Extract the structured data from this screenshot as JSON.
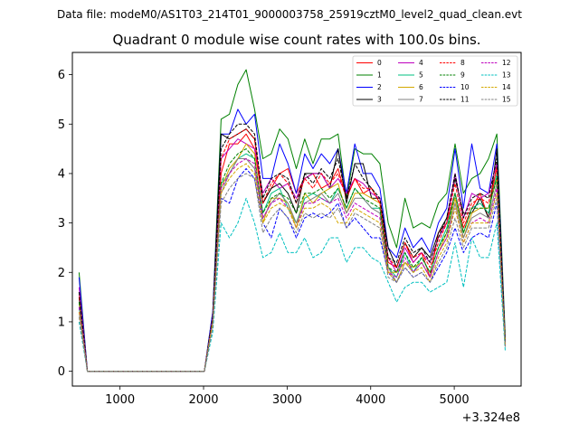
{
  "chart_data": {
    "type": "line",
    "suptitle": "Data file: modeM0/AS1T03_214T01_9000003758_25919cztM0_level2_quad_clean.evt",
    "title": "Quadrant 0 module wise count rates with 100.0s bins.",
    "xlabel": "",
    "ylabel": "",
    "x_offset_label": "+3.324e8",
    "xlim": [
      430,
      5800
    ],
    "ylim": [
      -0.3,
      6.45
    ],
    "xticks": [
      1000,
      2000,
      3000,
      4000,
      5000
    ],
    "yticks": [
      0,
      1,
      2,
      3,
      4,
      5,
      6
    ],
    "grid": false,
    "legend": {
      "placement": "top-right",
      "ncol": 4
    },
    "x": [
      510,
      610,
      710,
      810,
      910,
      1010,
      1110,
      1210,
      1310,
      1410,
      1510,
      1610,
      1710,
      1810,
      1910,
      2010,
      2110,
      2210,
      2310,
      2410,
      2510,
      2610,
      2710,
      2810,
      2910,
      3010,
      3110,
      3210,
      3310,
      3410,
      3510,
      3610,
      3710,
      3810,
      3910,
      4010,
      4110,
      4210,
      4310,
      4410,
      4510,
      4610,
      4710,
      4810,
      4910,
      5010,
      5110,
      5210,
      5310,
      5410,
      5510,
      5610
    ],
    "series": [
      {
        "name": "0",
        "color": "#ff0000",
        "style": "solid",
        "values": [
          1.6,
          0.0,
          0.0,
          0.0,
          0.0,
          0.0,
          0.0,
          0.0,
          0.0,
          0.0,
          0.0,
          0.0,
          0.0,
          0.0,
          0.0,
          0.0,
          1.1,
          4.0,
          4.6,
          4.6,
          4.8,
          4.5,
          3.4,
          3.7,
          4.0,
          4.1,
          3.6,
          3.9,
          4.0,
          3.7,
          3.8,
          4.1,
          3.5,
          3.9,
          3.6,
          3.7,
          3.4,
          2.2,
          2.1,
          2.6,
          2.2,
          2.4,
          1.9,
          2.8,
          3.0,
          3.6,
          2.9,
          3.3,
          3.6,
          3.1,
          4.2,
          0.6
        ]
      },
      {
        "name": "1",
        "color": "#008000",
        "style": "solid",
        "values": [
          2.0,
          0.0,
          0.0,
          0.0,
          0.0,
          0.0,
          0.0,
          0.0,
          0.0,
          0.0,
          0.0,
          0.0,
          0.0,
          0.0,
          0.0,
          0.0,
          1.2,
          5.1,
          5.2,
          5.8,
          6.1,
          5.3,
          4.3,
          4.4,
          4.9,
          4.7,
          4.1,
          4.7,
          4.2,
          4.7,
          4.7,
          4.8,
          3.5,
          4.5,
          4.4,
          4.4,
          4.2,
          3.0,
          2.5,
          3.5,
          2.9,
          3.0,
          2.9,
          3.4,
          3.6,
          4.6,
          3.6,
          3.9,
          4.0,
          4.3,
          4.8,
          0.7
        ]
      },
      {
        "name": "2",
        "color": "#0000ff",
        "style": "solid",
        "values": [
          1.9,
          0.0,
          0.0,
          0.0,
          0.0,
          0.0,
          0.0,
          0.0,
          0.0,
          0.0,
          0.0,
          0.0,
          0.0,
          0.0,
          0.0,
          0.0,
          1.2,
          4.8,
          4.8,
          5.3,
          5.0,
          5.2,
          3.9,
          3.9,
          4.6,
          4.2,
          3.6,
          4.4,
          4.1,
          4.4,
          4.2,
          4.5,
          3.6,
          4.6,
          4.0,
          4.0,
          3.7,
          2.5,
          2.3,
          2.9,
          2.5,
          2.7,
          2.4,
          3.0,
          3.3,
          4.5,
          3.3,
          4.6,
          3.7,
          3.6,
          4.6,
          0.6
        ]
      },
      {
        "name": "3",
        "color": "#000000",
        "style": "solid",
        "values": [
          1.5,
          0.0,
          0.0,
          0.0,
          0.0,
          0.0,
          0.0,
          0.0,
          0.0,
          0.0,
          0.0,
          0.0,
          0.0,
          0.0,
          0.0,
          0.0,
          1.1,
          4.8,
          4.7,
          4.8,
          4.9,
          4.7,
          3.4,
          3.7,
          3.8,
          3.6,
          3.2,
          4.0,
          4.0,
          4.0,
          3.7,
          4.5,
          3.4,
          4.2,
          4.2,
          3.5,
          3.5,
          2.5,
          2.1,
          2.6,
          2.3,
          2.5,
          2.3,
          2.8,
          3.1,
          3.9,
          3.2,
          3.2,
          3.5,
          3.1,
          4.5,
          0.5
        ]
      },
      {
        "name": "4",
        "color": "#bf00bf",
        "style": "solid",
        "values": [
          1.7,
          0.0,
          0.0,
          0.0,
          0.0,
          0.0,
          0.0,
          0.0,
          0.0,
          0.0,
          0.0,
          0.0,
          0.0,
          0.0,
          0.0,
          0.0,
          1.1,
          4.3,
          4.5,
          4.7,
          4.6,
          4.5,
          3.6,
          3.9,
          3.7,
          3.8,
          3.5,
          3.9,
          4.0,
          4.0,
          3.7,
          3.9,
          3.6,
          3.9,
          3.8,
          3.6,
          3.5,
          2.3,
          2.0,
          2.5,
          2.2,
          2.4,
          2.2,
          2.7,
          3.0,
          4.0,
          3.1,
          3.6,
          3.5,
          3.6,
          4.2,
          0.6
        ]
      },
      {
        "name": "5",
        "color": "#00c080",
        "style": "solid",
        "values": [
          1.3,
          0.0,
          0.0,
          0.0,
          0.0,
          0.0,
          0.0,
          0.0,
          0.0,
          0.0,
          0.0,
          0.0,
          0.0,
          0.0,
          0.0,
          0.0,
          1.0,
          3.8,
          4.0,
          4.3,
          4.4,
          4.3,
          3.2,
          3.6,
          3.7,
          3.3,
          3.0,
          3.5,
          3.6,
          3.5,
          3.4,
          3.7,
          3.3,
          3.7,
          3.5,
          3.3,
          3.3,
          2.1,
          1.9,
          2.4,
          2.0,
          2.3,
          2.0,
          2.5,
          2.9,
          3.6,
          2.8,
          3.3,
          3.4,
          3.2,
          4.0,
          0.6
        ]
      },
      {
        "name": "6",
        "color": "#d4a800",
        "style": "solid",
        "values": [
          1.4,
          0.0,
          0.0,
          0.0,
          0.0,
          0.0,
          0.0,
          0.0,
          0.0,
          0.0,
          0.0,
          0.0,
          0.0,
          0.0,
          0.0,
          0.0,
          1.0,
          3.7,
          4.1,
          4.3,
          4.6,
          4.4,
          3.0,
          3.5,
          3.5,
          3.4,
          2.9,
          3.6,
          3.4,
          3.6,
          3.7,
          3.8,
          3.2,
          3.6,
          3.6,
          3.5,
          3.4,
          2.0,
          2.0,
          2.2,
          2.1,
          2.2,
          1.9,
          2.4,
          2.8,
          3.5,
          2.7,
          3.2,
          3.3,
          3.3,
          3.9,
          0.5
        ]
      },
      {
        "name": "7",
        "color": "#808080",
        "style": "solid",
        "values": [
          1.2,
          0.0,
          0.0,
          0.0,
          0.0,
          0.0,
          0.0,
          0.0,
          0.0,
          0.0,
          0.0,
          0.0,
          0.0,
          0.0,
          0.0,
          0.0,
          1.0,
          3.6,
          4.0,
          4.3,
          4.3,
          4.1,
          3.1,
          3.4,
          3.6,
          3.4,
          3.0,
          3.4,
          3.5,
          3.6,
          3.4,
          3.6,
          3.2,
          3.5,
          3.5,
          3.3,
          3.2,
          2.1,
          1.8,
          2.2,
          2.0,
          2.2,
          1.9,
          2.4,
          2.7,
          3.4,
          2.7,
          3.1,
          3.2,
          3.1,
          3.8,
          0.5
        ]
      },
      {
        "name": "8",
        "color": "#ff0000",
        "style": "dashed",
        "values": [
          1.5,
          0.0,
          0.0,
          0.0,
          0.0,
          0.0,
          0.0,
          0.0,
          0.0,
          0.0,
          0.0,
          0.0,
          0.0,
          0.0,
          0.0,
          0.0,
          1.1,
          4.3,
          4.7,
          4.8,
          4.9,
          4.7,
          3.4,
          3.8,
          4.0,
          3.8,
          3.4,
          3.9,
          3.7,
          4.0,
          3.8,
          4.0,
          3.5,
          3.9,
          3.7,
          3.7,
          3.4,
          2.3,
          2.1,
          2.6,
          2.3,
          2.4,
          2.1,
          2.6,
          3.0,
          3.8,
          3.0,
          3.4,
          3.5,
          3.4,
          4.1,
          0.6
        ]
      },
      {
        "name": "9",
        "color": "#008000",
        "style": "dashed",
        "values": [
          1.4,
          0.0,
          0.0,
          0.0,
          0.0,
          0.0,
          0.0,
          0.0,
          0.0,
          0.0,
          0.0,
          0.0,
          0.0,
          0.0,
          0.0,
          0.0,
          1.0,
          3.8,
          4.2,
          4.4,
          4.5,
          4.3,
          3.2,
          3.5,
          3.6,
          3.5,
          3.2,
          3.6,
          3.6,
          3.7,
          3.5,
          3.7,
          3.3,
          3.7,
          3.5,
          3.4,
          3.3,
          2.1,
          2.0,
          2.4,
          2.1,
          2.3,
          2.0,
          2.5,
          2.8,
          3.6,
          2.8,
          3.3,
          3.3,
          3.3,
          3.9,
          0.6
        ]
      },
      {
        "name": "10",
        "color": "#0000ff",
        "style": "dashed",
        "values": [
          1.3,
          0.0,
          0.0,
          0.0,
          0.0,
          0.0,
          0.0,
          0.0,
          0.0,
          0.0,
          0.0,
          0.0,
          0.0,
          0.0,
          0.0,
          0.0,
          1.0,
          3.5,
          3.4,
          3.9,
          4.1,
          3.9,
          3.0,
          2.7,
          3.3,
          3.1,
          2.7,
          3.1,
          3.2,
          3.1,
          3.2,
          3.4,
          2.9,
          3.1,
          2.9,
          2.7,
          2.7,
          2.0,
          1.8,
          2.1,
          1.9,
          2.0,
          1.8,
          2.1,
          2.4,
          2.9,
          2.4,
          2.7,
          2.8,
          2.7,
          3.4,
          0.5
        ]
      },
      {
        "name": "11",
        "color": "#000000",
        "style": "dashed",
        "values": [
          1.6,
          0.0,
          0.0,
          0.0,
          0.0,
          0.0,
          0.0,
          0.0,
          0.0,
          0.0,
          0.0,
          0.0,
          0.0,
          0.0,
          0.0,
          0.0,
          1.1,
          4.5,
          4.8,
          5.0,
          5.0,
          4.8,
          3.5,
          3.9,
          4.0,
          3.9,
          3.4,
          4.0,
          3.8,
          4.1,
          3.9,
          4.3,
          3.5,
          4.2,
          3.9,
          3.7,
          3.5,
          2.3,
          2.2,
          2.7,
          2.4,
          2.5,
          2.2,
          2.7,
          3.1,
          4.0,
          3.1,
          3.5,
          3.6,
          3.5,
          4.3,
          0.6
        ]
      },
      {
        "name": "12",
        "color": "#bf00bf",
        "style": "dashed",
        "values": [
          1.3,
          0.0,
          0.0,
          0.0,
          0.0,
          0.0,
          0.0,
          0.0,
          0.0,
          0.0,
          0.0,
          0.0,
          0.0,
          0.0,
          0.0,
          0.0,
          1.0,
          3.7,
          4.0,
          4.2,
          4.3,
          4.2,
          3.1,
          3.4,
          3.5,
          3.3,
          2.9,
          3.4,
          3.4,
          3.5,
          3.4,
          3.5,
          3.1,
          3.4,
          3.3,
          3.2,
          3.1,
          2.0,
          1.9,
          2.3,
          2.0,
          2.2,
          1.9,
          2.4,
          2.7,
          3.3,
          2.6,
          3.0,
          3.1,
          3.0,
          3.7,
          0.5
        ]
      },
      {
        "name": "13",
        "color": "#00c0c0",
        "style": "dashed",
        "values": [
          1.0,
          0.0,
          0.0,
          0.0,
          0.0,
          0.0,
          0.0,
          0.0,
          0.0,
          0.0,
          0.0,
          0.0,
          0.0,
          0.0,
          0.0,
          0.0,
          0.8,
          3.0,
          2.7,
          3.0,
          3.5,
          3.0,
          2.3,
          2.4,
          2.8,
          2.4,
          2.4,
          2.7,
          2.3,
          2.4,
          2.7,
          2.7,
          2.2,
          2.5,
          2.5,
          2.3,
          2.2,
          1.8,
          1.4,
          1.7,
          1.8,
          1.8,
          1.6,
          1.7,
          1.8,
          2.6,
          1.7,
          2.7,
          2.3,
          2.3,
          3.0,
          0.4
        ]
      },
      {
        "name": "14",
        "color": "#d4a800",
        "style": "dashed",
        "values": [
          1.2,
          0.0,
          0.0,
          0.0,
          0.0,
          0.0,
          0.0,
          0.0,
          0.0,
          0.0,
          0.0,
          0.0,
          0.0,
          0.0,
          0.0,
          0.0,
          1.0,
          3.6,
          3.9,
          4.1,
          4.2,
          4.0,
          3.0,
          3.3,
          3.4,
          3.3,
          2.9,
          3.3,
          3.3,
          3.4,
          3.3,
          3.0,
          3.0,
          3.3,
          3.2,
          3.1,
          3.0,
          2.0,
          1.8,
          2.2,
          2.0,
          2.1,
          1.8,
          2.3,
          2.6,
          3.3,
          2.6,
          3.0,
          3.0,
          3.0,
          3.6,
          0.5
        ]
      },
      {
        "name": "15",
        "color": "#808080",
        "style": "dashed",
        "values": [
          1.1,
          0.0,
          0.0,
          0.0,
          0.0,
          0.0,
          0.0,
          0.0,
          0.0,
          0.0,
          0.0,
          0.0,
          0.0,
          0.0,
          0.0,
          0.0,
          0.9,
          3.4,
          3.7,
          3.9,
          4.0,
          3.9,
          2.8,
          3.1,
          3.3,
          3.1,
          2.8,
          3.2,
          3.1,
          3.2,
          3.1,
          3.3,
          2.9,
          3.2,
          3.1,
          3.0,
          2.9,
          1.9,
          1.8,
          2.1,
          1.9,
          2.0,
          1.8,
          2.2,
          2.5,
          3.1,
          2.5,
          2.9,
          2.9,
          2.9,
          3.5,
          0.5
        ]
      }
    ]
  }
}
